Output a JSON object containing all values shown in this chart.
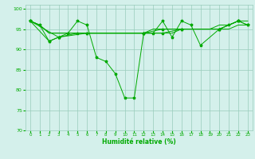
{
  "x": [
    0,
    1,
    2,
    3,
    4,
    5,
    6,
    7,
    8,
    9,
    10,
    11,
    12,
    13,
    14,
    15,
    16,
    17,
    18,
    19,
    20,
    21,
    22,
    23
  ],
  "series_main": [
    97,
    96,
    92,
    93,
    94,
    97,
    96,
    88,
    87,
    84,
    78,
    78,
    94,
    94,
    97,
    93,
    97,
    96,
    91,
    null,
    95,
    96,
    97,
    96
  ],
  "series_flat1": [
    97,
    96,
    94,
    94,
    94,
    94,
    94,
    94,
    94,
    94,
    94,
    94,
    94,
    94,
    94,
    94,
    95,
    95,
    95,
    95,
    95,
    95,
    96,
    96
  ],
  "series_flat2": [
    97,
    96,
    94,
    94,
    94,
    94,
    94,
    94,
    94,
    94,
    94,
    94,
    94,
    95,
    95,
    95,
    95,
    95,
    95,
    95,
    96,
    96,
    97,
    97
  ],
  "series_b": [
    97,
    null,
    92,
    93,
    null,
    94,
    94,
    null,
    null,
    null,
    null,
    null,
    94,
    null,
    95,
    null,
    95,
    null,
    null,
    null,
    95,
    null,
    97,
    null
  ],
  "series_c": [
    97,
    null,
    null,
    93,
    null,
    null,
    94,
    null,
    null,
    null,
    null,
    null,
    94,
    null,
    94,
    null,
    95,
    null,
    null,
    null,
    95,
    null,
    97,
    96
  ],
  "bg_color": "#d4f0eb",
  "grid_color": "#99ccbb",
  "line_color": "#00aa00",
  "xlabel": "Humidité relative (%)",
  "ylim": [
    70,
    101
  ],
  "yticks": [
    70,
    75,
    80,
    85,
    90,
    95,
    100
  ],
  "xlim": [
    -0.5,
    23.5
  ],
  "xlabels": [
    "0",
    "1",
    "2",
    "3",
    "4",
    "5",
    "6",
    "7",
    "8",
    "9",
    "10",
    "11",
    "12",
    "13",
    "14",
    "15",
    "16",
    "17",
    "18",
    "19",
    "20",
    "21",
    "22",
    "23"
  ]
}
